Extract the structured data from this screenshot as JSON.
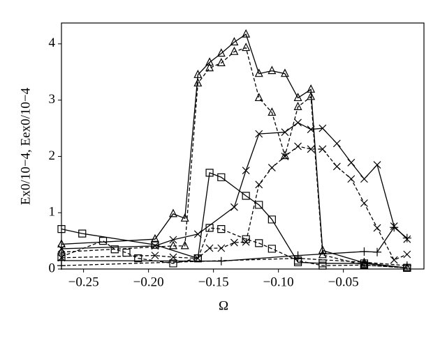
{
  "chart_data": {
    "type": "line",
    "xlabel": "Ω",
    "ylabel": "Ex0/10−4, Eex0/10−4",
    "xlim": [
      -0.267,
      0.012
    ],
    "ylim": [
      0,
      4.37
    ],
    "xticks": [
      {
        "value": -0.25,
        "label": "−0.25"
      },
      {
        "value": -0.2,
        "label": "−0.20"
      },
      {
        "value": -0.15,
        "label": "−0.15"
      },
      {
        "value": -0.1,
        "label": "−0.10"
      },
      {
        "value": -0.05,
        "label": "−0.05"
      }
    ],
    "yticks": [
      0,
      1,
      2,
      3,
      4
    ],
    "series": [
      {
        "color": "#000000",
        "marker": "triangle",
        "dash": "solid",
        "x": [
          -0.267,
          -0.195,
          -0.181,
          -0.172,
          -0.162,
          -0.153,
          -0.144,
          -0.134,
          -0.125,
          -0.115,
          -0.105,
          -0.095,
          -0.085,
          -0.075,
          -0.066,
          -0.034,
          -0.001
        ],
        "values": [
          0.44,
          0.53,
          0.98,
          0.9,
          3.45,
          3.67,
          3.83,
          4.03,
          4.17,
          3.47,
          3.52,
          3.47,
          3.04,
          3.19,
          0.33,
          0.11,
          0.02
        ]
      },
      {
        "color": "#000000",
        "marker": "triangle",
        "dash": "dashed",
        "x": [
          -0.267,
          -0.181,
          -0.172,
          -0.162,
          -0.153,
          -0.144,
          -0.134,
          -0.125,
          -0.115,
          -0.105,
          -0.095,
          -0.085,
          -0.075,
          -0.066,
          -0.034,
          -0.001
        ],
        "values": [
          0.3,
          0.41,
          0.41,
          3.3,
          3.57,
          3.66,
          3.86,
          3.93,
          3.04,
          2.78,
          2.01,
          2.88,
          3.06,
          0.25,
          0.07,
          0.02
        ]
      },
      {
        "color": "#000000",
        "marker": "x",
        "dash": "solid",
        "x": [
          -0.267,
          -0.195,
          -0.181,
          -0.162,
          -0.134,
          -0.125,
          -0.115,
          -0.095,
          -0.085,
          -0.075,
          -0.066,
          -0.055,
          -0.044,
          -0.034,
          -0.024,
          -0.011,
          -0.001
        ],
        "values": [
          0.36,
          0.41,
          0.52,
          0.62,
          1.1,
          1.75,
          2.4,
          2.43,
          2.6,
          2.48,
          2.5,
          2.23,
          1.89,
          1.6,
          1.85,
          0.76,
          0.53
        ]
      },
      {
        "color": "#000000",
        "marker": "x",
        "dash": "dashed",
        "x": [
          -0.267,
          -0.195,
          -0.181,
          -0.162,
          -0.153,
          -0.144,
          -0.134,
          -0.125,
          -0.115,
          -0.105,
          -0.095,
          -0.085,
          -0.075,
          -0.066,
          -0.055,
          -0.044,
          -0.034,
          -0.024,
          -0.011,
          -0.001
        ],
        "values": [
          0.2,
          0.24,
          0.21,
          0.19,
          0.37,
          0.37,
          0.47,
          0.48,
          1.5,
          1.8,
          2.0,
          2.18,
          2.13,
          2.13,
          1.82,
          1.6,
          1.17,
          0.73,
          0.16,
          0.26
        ]
      },
      {
        "color": "#000000",
        "marker": "square",
        "dash": "solid",
        "x": [
          -0.267,
          -0.251,
          -0.195,
          -0.162,
          -0.153,
          -0.144,
          -0.125,
          -0.115,
          -0.105,
          -0.085,
          -0.066,
          -0.034,
          -0.001
        ],
        "values": [
          0.71,
          0.63,
          0.43,
          0.19,
          1.71,
          1.63,
          1.3,
          1.14,
          0.88,
          0.12,
          0.1,
          0.1,
          0.02
        ]
      },
      {
        "color": "#000000",
        "marker": "square",
        "dash": "dashed",
        "x": [
          -0.267,
          -0.235,
          -0.226,
          -0.217,
          -0.208,
          -0.181,
          -0.162,
          -0.153,
          -0.144,
          -0.125,
          -0.115,
          -0.105,
          -0.085,
          -0.066,
          -0.034,
          -0.001
        ],
        "values": [
          0.22,
          0.5,
          0.35,
          0.29,
          0.19,
          0.1,
          0.19,
          0.73,
          0.71,
          0.53,
          0.46,
          0.36,
          0.15,
          0.06,
          0.07,
          0.02
        ]
      },
      {
        "color": "#000000",
        "marker": "plus",
        "dash": "solid",
        "x": [
          -0.267,
          -0.144,
          -0.085,
          -0.034,
          -0.024,
          -0.011,
          -0.001
        ],
        "values": [
          0.15,
          0.14,
          0.24,
          0.31,
          0.3,
          0.74,
          0.55
        ]
      },
      {
        "color": "#000000",
        "marker": "plus",
        "dash": "dashed",
        "x": [
          -0.267,
          -0.085,
          -0.034,
          -0.001
        ],
        "values": [
          0.06,
          0.19,
          0.12,
          0.06
        ]
      }
    ]
  }
}
